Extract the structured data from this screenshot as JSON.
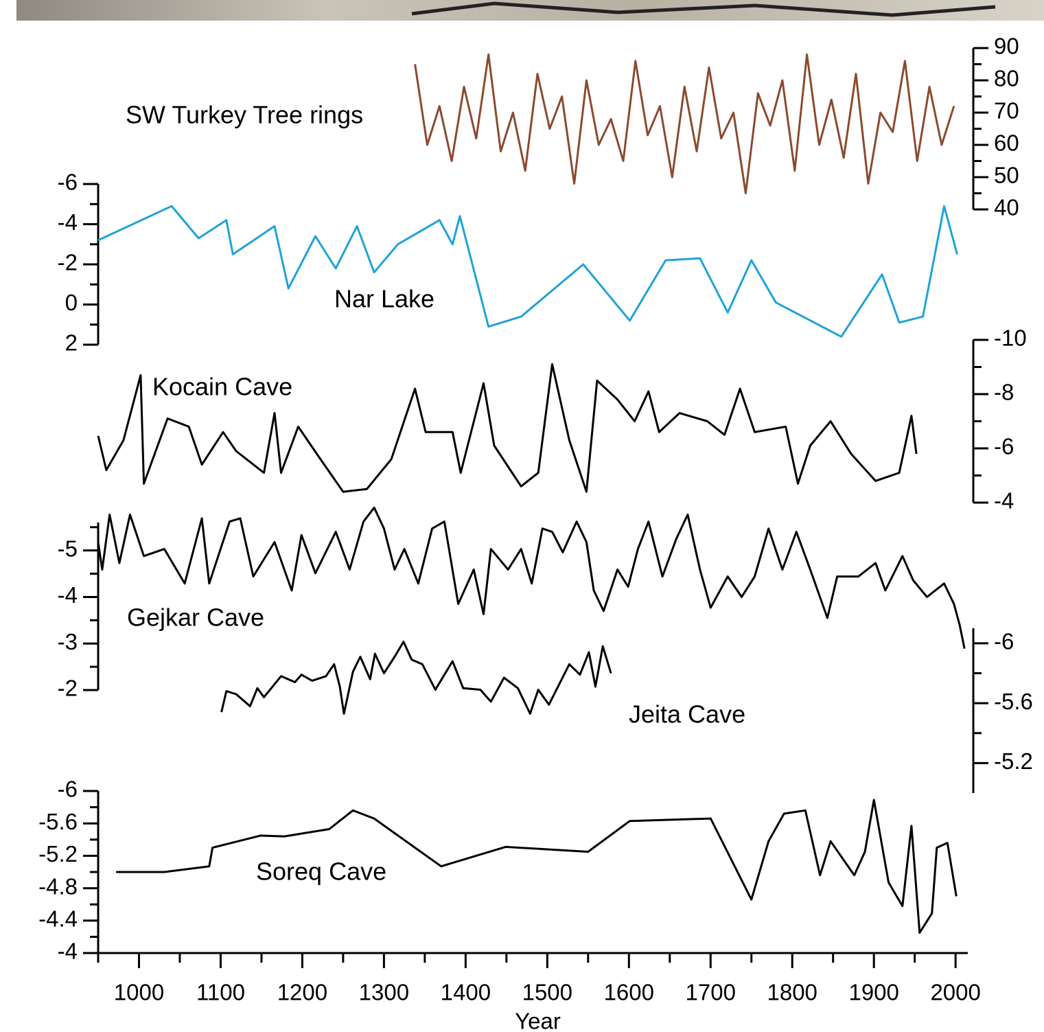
{
  "chart_data": [
    {
      "type": "line",
      "series": [
        {
          "name": "SW Turkey Tree rings",
          "color": "#8b4a2f",
          "values": [
            85,
            60,
            72,
            55,
            78,
            62,
            88,
            58,
            70,
            52,
            82,
            65,
            75,
            48,
            80,
            60,
            68,
            55,
            86,
            63,
            72,
            50,
            78,
            58,
            84,
            62,
            70,
            45,
            76,
            66,
            80,
            52,
            88,
            60,
            74,
            56,
            82,
            48,
            70,
            64,
            86,
            55,
            78,
            60,
            72
          ]
        }
      ],
      "x": [
        1338,
        1353,
        1368,
        1383,
        1398,
        1413,
        1428,
        1443,
        1458,
        1473,
        1488,
        1503,
        1518,
        1533,
        1548,
        1563,
        1578,
        1593,
        1608,
        1623,
        1638,
        1653,
        1668,
        1683,
        1698,
        1713,
        1728,
        1743,
        1758,
        1773,
        1788,
        1803,
        1818,
        1833,
        1848,
        1863,
        1878,
        1893,
        1908,
        1923,
        1938,
        1953,
        1968,
        1983,
        1998
      ],
      "xlim": [
        950,
        2015
      ],
      "ylim": [
        40,
        90
      ],
      "yticks": [
        90,
        80,
        70,
        60,
        50,
        40
      ],
      "yminorticks": [
        85,
        75,
        65,
        55,
        45
      ],
      "axis_side": "right"
    },
    {
      "type": "line",
      "series": [
        {
          "name": "Nar Lake",
          "color": "#1ea3d8",
          "values": [
            -3.2,
            -4.9,
            -3.3,
            -4.2,
            -2.5,
            -3.9,
            -0.8,
            -3.4,
            -1.8,
            -3.9,
            -1.6,
            -3.0,
            -4.2,
            -3.0,
            -4.4,
            1.1,
            0.6,
            -2.0,
            0.8,
            -2.2,
            -2.3,
            0.4,
            -2.2,
            -0.1,
            1.6,
            -1.5,
            0.9,
            0.6,
            -4.9,
            -2.5
          ]
        }
      ],
      "x": [
        950,
        1040,
        1073,
        1107,
        1115,
        1166,
        1183,
        1216,
        1241,
        1267,
        1288,
        1317,
        1368,
        1384,
        1393,
        1428,
        1468,
        1544,
        1601,
        1645,
        1687,
        1721,
        1750,
        1780,
        1860,
        1910,
        1931,
        1960,
        1986,
        2002
      ],
      "xlim": [
        950,
        2015
      ],
      "ylim": [
        2,
        -6
      ],
      "yticks": [
        -6,
        -4,
        -2,
        0,
        2
      ],
      "yminorticks": [
        -5,
        -3,
        -1,
        1
      ],
      "axis_side": "left"
    },
    {
      "type": "line",
      "series": [
        {
          "name": "Kocain Cave",
          "color": "#000000",
          "values": [
            -6.46,
            -5.2,
            -6.3,
            -8.7,
            -4.7,
            -7.1,
            -6.8,
            -5.4,
            -6.6,
            -5.9,
            -5.1,
            -7.3,
            -5.1,
            -6.8,
            -5.7,
            -4.4,
            -4.5,
            -5.6,
            -8.2,
            -6.6,
            -6.6,
            -5.1,
            -8.4,
            -6.1,
            -4.6,
            -5.1,
            -9.1,
            -6.3,
            -4.4,
            -8.5,
            -7.8,
            -7.0,
            -8.1,
            -6.6,
            -7.3,
            -7.0,
            -6.5,
            -8.2,
            -6.6,
            -6.8,
            -4.7,
            -6.1,
            -7.0,
            -5.8,
            -4.8,
            -5.1,
            -7.2,
            -5.8
          ]
        }
      ],
      "x": [
        950,
        960,
        981,
        1002,
        1006,
        1035,
        1061,
        1077,
        1103,
        1119,
        1153,
        1166,
        1174,
        1195,
        1220,
        1250,
        1279,
        1309,
        1338,
        1351,
        1384,
        1394,
        1422,
        1435,
        1468,
        1489,
        1506,
        1527,
        1548,
        1561,
        1586,
        1607,
        1624,
        1637,
        1662,
        1696,
        1717,
        1736,
        1754,
        1792,
        1807,
        1822,
        1847,
        1872,
        1902,
        1931,
        1946,
        1952
      ],
      "xlim": [
        950,
        2015
      ],
      "ylim": [
        -4,
        -10
      ],
      "yticks": [
        -10,
        -8,
        -6,
        -4
      ],
      "yminorticks": [
        -9,
        -7,
        -5
      ],
      "axis_side": "right"
    },
    {
      "type": "line",
      "series": [
        {
          "name": "Gejkar Cave",
          "color": "#000000",
          "values": [
            -5.18,
            -4.59,
            -5.77,
            -4.73,
            -5.77,
            -4.88,
            -5.03,
            -4.29,
            -5.69,
            -4.29,
            -5.62,
            -5.69,
            -4.44,
            -5.18,
            -4.14,
            -5.33,
            -4.51,
            -5.4,
            -4.59,
            -5.62,
            -5.92,
            -5.47,
            -4.59,
            -5.03,
            -4.29,
            -5.47,
            -5.62,
            -3.85,
            -4.59,
            -3.63,
            -5.03,
            -4.59,
            -5.03,
            -4.29,
            -5.47,
            -5.4,
            -4.96,
            -5.62,
            -5.18,
            -4.14,
            -3.7,
            -4.59,
            -4.22,
            -5.03,
            -5.62,
            -4.44,
            -5.25,
            -5.77,
            -4.59,
            -3.77,
            -4.44,
            -4.0,
            -4.44,
            -5.47,
            -4.59,
            -5.4,
            -4.59,
            -3.55,
            -4.44,
            -4.44,
            -4.73,
            -4.14,
            -4.88,
            -4.36,
            -4.0,
            -4.29,
            -3.85,
            -3.4,
            -2.89
          ]
        }
      ],
      "x": [
        950,
        955,
        964,
        976,
        989,
        1006,
        1031,
        1056,
        1077,
        1086,
        1111,
        1124,
        1140,
        1166,
        1187,
        1199,
        1216,
        1241,
        1258,
        1275,
        1288,
        1300,
        1313,
        1325,
        1342,
        1359,
        1374,
        1391,
        1410,
        1422,
        1431,
        1452,
        1468,
        1481,
        1494,
        1506,
        1519,
        1536,
        1548,
        1557,
        1569,
        1586,
        1599,
        1611,
        1624,
        1641,
        1658,
        1672,
        1687,
        1700,
        1721,
        1738,
        1754,
        1771,
        1788,
        1805,
        1822,
        1843,
        1855,
        1881,
        1902,
        1914,
        1935,
        1948,
        1965,
        1986,
        1998,
        2005,
        2011
      ],
      "xlim": [
        950,
        2015
      ],
      "ylim": [
        -2,
        -5.6
      ],
      "yticks": [
        -5,
        -4,
        -3,
        -2
      ],
      "yminorticks": [
        -5.5,
        -4.5,
        -3.5,
        -2.5
      ],
      "axis_side": "left"
    },
    {
      "type": "line",
      "series": [
        {
          "name": "Jeita Cave",
          "color": "#000000",
          "values": [
            -5.54,
            -5.68,
            -5.66,
            -5.58,
            -5.7,
            -5.64,
            -5.78,
            -5.74,
            -5.79,
            -5.75,
            -5.78,
            -5.86,
            -5.71,
            -5.53,
            -5.81,
            -5.91,
            -5.76,
            -5.93,
            -5.8,
            -5.91,
            -6.01,
            -5.89,
            -5.86,
            -5.69,
            -5.88,
            -5.7,
            -5.69,
            -5.61,
            -5.77,
            -5.7,
            -5.53,
            -5.69,
            -5.59,
            -5.86,
            -5.79,
            -5.94,
            -5.71,
            -5.98,
            -5.8
          ]
        }
      ],
      "x": [
        1101,
        1107,
        1119,
        1136,
        1145,
        1153,
        1174,
        1191,
        1199,
        1212,
        1229,
        1239,
        1246,
        1251,
        1262,
        1271,
        1283,
        1289,
        1300,
        1313,
        1324,
        1334,
        1347,
        1363,
        1384,
        1397,
        1418,
        1431,
        1447,
        1464,
        1479,
        1489,
        1502,
        1527,
        1540,
        1551,
        1559,
        1568,
        1578
      ],
      "xlim": [
        950,
        2015
      ],
      "ylim": [
        -5.0,
        -6.1
      ],
      "yticks": [
        -6,
        -5.6,
        -5.2
      ],
      "yminorticks": [
        -5.8,
        -5.4
      ],
      "axis_side": "right"
    },
    {
      "type": "line",
      "series": [
        {
          "name": "Soreq Cave",
          "color": "#000000",
          "values": [
            -5.0,
            -5.0,
            -5.07,
            -5.3,
            -5.45,
            -5.44,
            -5.53,
            -5.76,
            -5.66,
            -5.07,
            -5.31,
            -5.25,
            -5.63,
            -5.66,
            -4.66,
            -5.38,
            -5.72,
            -5.76,
            -4.96,
            -5.38,
            -4.96,
            -5.25,
            -5.89,
            -4.87,
            -4.58,
            -5.57,
            -4.25,
            -4.49,
            -5.3,
            -5.36,
            -4.7
          ]
        }
      ],
      "x": [
        972,
        1031,
        1086,
        1090,
        1149,
        1178,
        1233,
        1262,
        1288,
        1370,
        1449,
        1550,
        1601,
        1700,
        1750,
        1771,
        1790,
        1816,
        1834,
        1847,
        1876,
        1889,
        1900,
        1918,
        1935,
        1946,
        1956,
        1971,
        1977,
        1990,
        2001
      ],
      "xlim": [
        950,
        2015
      ],
      "ylim": [
        -4,
        -6
      ],
      "yticks": [
        -6,
        -5.6,
        -5.2,
        -4.8,
        -4.4,
        -4
      ],
      "yminorticks": [
        -5.8,
        -5.4,
        -5.0,
        -4.6,
        -4.2
      ],
      "axis_side": "left",
      "xticks": [
        1000,
        1100,
        1200,
        1300,
        1400,
        1500,
        1600,
        1700,
        1800,
        1900,
        2000
      ],
      "xminorticks": [
        950,
        1050,
        1150,
        1250,
        1350,
        1450,
        1550,
        1650,
        1750,
        1850,
        1950
      ],
      "xlabel": "Year"
    }
  ]
}
